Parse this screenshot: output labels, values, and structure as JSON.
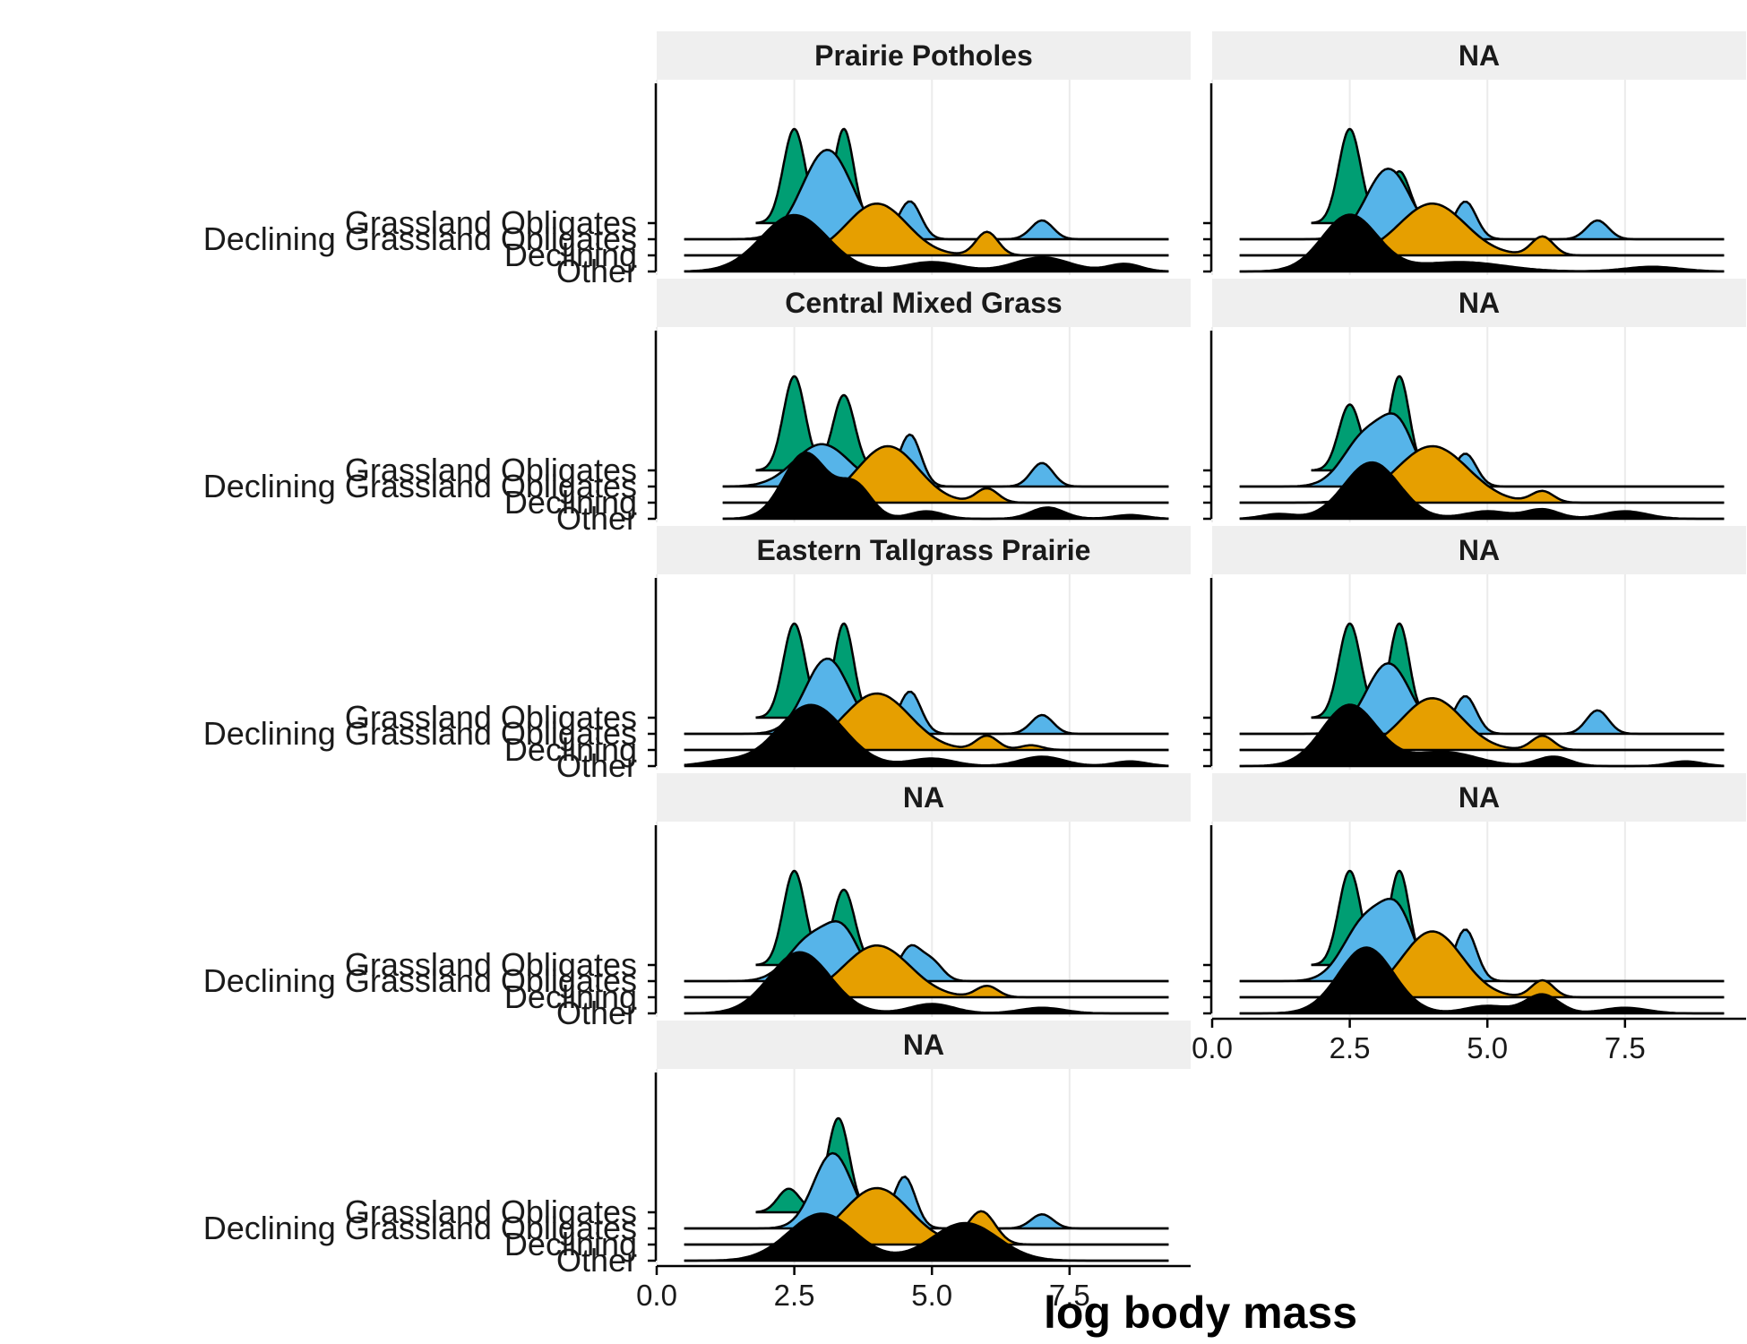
{
  "chart_data": {
    "type": "ridgeline",
    "xlabel": "log body mass",
    "x_ticks": [
      0,
      2.5,
      5,
      7.5
    ],
    "x_tick_labels": [
      "0.0",
      "2.5",
      "5.0",
      "7.5"
    ],
    "xlim": [
      0,
      9.7
    ],
    "categories": [
      "Grassland Obligates",
      "Declining Grassland Obligates",
      "Declining",
      "Other"
    ],
    "colors": {
      "Grassland Obligates": "#009E73",
      "Declining Grassland Obligates": "#56B4E9",
      "Declining": "#E69F00",
      "Other": "#000000"
    },
    "panels": [
      {
        "title": "Prairie Potholes",
        "ridges": [
          {
            "name": "Grassland Obligates",
            "peaks": [
              [
                2.5,
                1.0,
                0.2
              ],
              [
                3.4,
                1.0,
                0.18
              ]
            ],
            "range": [
              1.8,
              4.2
            ]
          },
          {
            "name": "Declining Grassland Obligates",
            "peaks": [
              [
                3.1,
                0.95,
                0.45
              ],
              [
                4.6,
                0.4,
                0.2
              ],
              [
                7.0,
                0.2,
                0.2
              ]
            ],
            "range": [
              0.5,
              9.3
            ]
          },
          {
            "name": "Declining",
            "peaks": [
              [
                4.0,
                0.55,
                0.55
              ],
              [
                6.0,
                0.25,
                0.2
              ]
            ],
            "range": [
              0.5,
              9.3
            ]
          },
          {
            "name": "Other",
            "peaks": [
              [
                2.5,
                0.6,
                0.6
              ],
              [
                5.0,
                0.1,
                0.5
              ],
              [
                7.0,
                0.15,
                0.5
              ],
              [
                8.5,
                0.08,
                0.3
              ]
            ],
            "range": [
              0.5,
              9.3
            ]
          }
        ]
      },
      {
        "title": "NA",
        "ridges": [
          {
            "name": "Grassland Obligates",
            "peaks": [
              [
                2.5,
                1.0,
                0.2
              ],
              [
                3.4,
                0.55,
                0.2
              ]
            ],
            "range": [
              1.8,
              4.2
            ]
          },
          {
            "name": "Declining Grassland Obligates",
            "peaks": [
              [
                3.2,
                0.75,
                0.4
              ],
              [
                4.6,
                0.4,
                0.2
              ],
              [
                7.0,
                0.2,
                0.2
              ]
            ],
            "range": [
              0.5,
              9.3
            ]
          },
          {
            "name": "Declining",
            "peaks": [
              [
                4.0,
                0.55,
                0.6
              ],
              [
                6.0,
                0.2,
                0.2
              ]
            ],
            "range": [
              0.5,
              9.3
            ]
          },
          {
            "name": "Other",
            "peaks": [
              [
                2.5,
                0.6,
                0.5
              ],
              [
                4.5,
                0.1,
                0.8
              ],
              [
                8.0,
                0.05,
                0.5
              ]
            ],
            "range": [
              0.5,
              9.3
            ]
          }
        ]
      },
      {
        "title": "Central Mixed Grass",
        "ridges": [
          {
            "name": "Grassland Obligates",
            "peaks": [
              [
                2.5,
                1.0,
                0.2
              ],
              [
                3.4,
                0.8,
                0.2
              ]
            ],
            "range": [
              1.8,
              4.2
            ]
          },
          {
            "name": "Declining Grassland Obligates",
            "peaks": [
              [
                3.0,
                0.45,
                0.5
              ],
              [
                4.6,
                0.55,
                0.2
              ],
              [
                7.0,
                0.25,
                0.2
              ]
            ],
            "range": [
              1.2,
              9.3
            ]
          },
          {
            "name": "Declining",
            "peaks": [
              [
                4.2,
                0.6,
                0.55
              ],
              [
                6.0,
                0.15,
                0.2
              ]
            ],
            "range": [
              1.2,
              9.3
            ]
          },
          {
            "name": "Other",
            "peaks": [
              [
                2.7,
                0.7,
                0.4
              ],
              [
                3.6,
                0.35,
                0.3
              ],
              [
                4.9,
                0.08,
                0.3
              ],
              [
                7.1,
                0.12,
                0.3
              ],
              [
                8.6,
                0.04,
                0.3
              ]
            ],
            "range": [
              1.2,
              9.3
            ]
          }
        ]
      },
      {
        "title": "NA",
        "ridges": [
          {
            "name": "Grassland Obligates",
            "peaks": [
              [
                2.5,
                0.7,
                0.2
              ],
              [
                3.4,
                1.0,
                0.18
              ]
            ],
            "range": [
              1.8,
              4.2
            ]
          },
          {
            "name": "Declining Grassland Obligates",
            "peaks": [
              [
                2.8,
                0.55,
                0.4
              ],
              [
                3.4,
                0.55,
                0.3
              ],
              [
                4.6,
                0.35,
                0.2
              ]
            ],
            "range": [
              0.5,
              9.3
            ]
          },
          {
            "name": "Declining",
            "peaks": [
              [
                4.0,
                0.6,
                0.65
              ],
              [
                6.0,
                0.12,
                0.2
              ]
            ],
            "range": [
              0.5,
              9.3
            ]
          },
          {
            "name": "Other",
            "peaks": [
              [
                2.9,
                0.6,
                0.5
              ],
              [
                1.2,
                0.05,
                0.3
              ],
              [
                5.0,
                0.08,
                0.4
              ],
              [
                6.0,
                0.1,
                0.3
              ],
              [
                7.5,
                0.08,
                0.4
              ]
            ],
            "range": [
              0.5,
              9.3
            ]
          }
        ]
      },
      {
        "title": "Eastern Tallgrass Prairie",
        "ridges": [
          {
            "name": "Grassland Obligates",
            "peaks": [
              [
                2.5,
                1.0,
                0.2
              ],
              [
                3.4,
                1.0,
                0.18
              ]
            ],
            "range": [
              1.8,
              4.2
            ]
          },
          {
            "name": "Declining Grassland Obligates",
            "peaks": [
              [
                3.1,
                0.8,
                0.4
              ],
              [
                4.6,
                0.45,
                0.2
              ],
              [
                7.0,
                0.2,
                0.2
              ]
            ],
            "range": [
              0.5,
              9.3
            ]
          },
          {
            "name": "Declining",
            "peaks": [
              [
                4.0,
                0.6,
                0.6
              ],
              [
                6.0,
                0.15,
                0.2
              ],
              [
                6.8,
                0.05,
                0.2
              ]
            ],
            "range": [
              0.5,
              9.3
            ]
          },
          {
            "name": "Other",
            "peaks": [
              [
                2.8,
                0.65,
                0.6
              ],
              [
                1.2,
                0.05,
                0.4
              ],
              [
                5.0,
                0.08,
                0.4
              ],
              [
                7.0,
                0.1,
                0.4
              ],
              [
                8.6,
                0.05,
                0.3
              ]
            ],
            "range": [
              0.5,
              9.3
            ]
          }
        ]
      },
      {
        "title": "NA",
        "ridges": [
          {
            "name": "Grassland Obligates",
            "peaks": [
              [
                2.5,
                1.0,
                0.2
              ],
              [
                3.4,
                1.0,
                0.18
              ]
            ],
            "range": [
              1.8,
              4.2
            ]
          },
          {
            "name": "Declining Grassland Obligates",
            "peaks": [
              [
                3.2,
                0.75,
                0.4
              ],
              [
                4.6,
                0.4,
                0.2
              ],
              [
                7.0,
                0.25,
                0.2
              ]
            ],
            "range": [
              0.5,
              9.3
            ]
          },
          {
            "name": "Declining",
            "peaks": [
              [
                4.0,
                0.55,
                0.55
              ],
              [
                6.0,
                0.15,
                0.2
              ]
            ],
            "range": [
              0.5,
              9.3
            ]
          },
          {
            "name": "Other",
            "peaks": [
              [
                2.5,
                0.65,
                0.5
              ],
              [
                4.2,
                0.15,
                0.6
              ],
              [
                6.2,
                0.1,
                0.3
              ],
              [
                8.6,
                0.05,
                0.3
              ]
            ],
            "range": [
              0.5,
              9.3
            ]
          }
        ]
      },
      {
        "title": "NA",
        "ridges": [
          {
            "name": "Grassland Obligates",
            "peaks": [
              [
                2.5,
                1.0,
                0.2
              ],
              [
                3.4,
                0.8,
                0.2
              ]
            ],
            "range": [
              1.8,
              4.2
            ]
          },
          {
            "name": "Declining Grassland Obligates",
            "peaks": [
              [
                2.8,
                0.45,
                0.4
              ],
              [
                3.4,
                0.45,
                0.3
              ],
              [
                4.6,
                0.35,
                0.2
              ],
              [
                5.0,
                0.2,
                0.2
              ]
            ],
            "range": [
              0.5,
              9.3
            ]
          },
          {
            "name": "Declining",
            "peaks": [
              [
                4.0,
                0.55,
                0.6
              ],
              [
                6.0,
                0.12,
                0.2
              ]
            ],
            "range": [
              0.5,
              9.3
            ]
          },
          {
            "name": "Other",
            "peaks": [
              [
                2.6,
                0.65,
                0.55
              ],
              [
                5.0,
                0.1,
                0.4
              ],
              [
                7.0,
                0.06,
                0.4
              ]
            ],
            "range": [
              0.5,
              9.3
            ]
          }
        ]
      },
      {
        "title": "NA",
        "ridges": [
          {
            "name": "Grassland Obligates",
            "peaks": [
              [
                2.5,
                1.0,
                0.2
              ],
              [
                3.4,
                1.0,
                0.18
              ]
            ],
            "range": [
              1.8,
              4.2
            ]
          },
          {
            "name": "Declining Grassland Obligates",
            "peaks": [
              [
                2.8,
                0.65,
                0.4
              ],
              [
                3.4,
                0.6,
                0.3
              ],
              [
                4.6,
                0.55,
                0.2
              ]
            ],
            "range": [
              0.5,
              9.3
            ]
          },
          {
            "name": "Declining",
            "peaks": [
              [
                4.0,
                0.7,
                0.55
              ],
              [
                6.0,
                0.18,
                0.2
              ]
            ],
            "range": [
              0.5,
              9.3
            ]
          },
          {
            "name": "Other",
            "peaks": [
              [
                2.8,
                0.7,
                0.5
              ],
              [
                5.0,
                0.08,
                0.4
              ],
              [
                6.0,
                0.2,
                0.3
              ],
              [
                7.5,
                0.06,
                0.4
              ]
            ],
            "range": [
              0.5,
              9.3
            ]
          }
        ]
      },
      {
        "title": "NA",
        "ridges": [
          {
            "name": "Grassland Obligates",
            "peaks": [
              [
                2.4,
                0.25,
                0.2
              ],
              [
                3.3,
                1.0,
                0.2
              ]
            ],
            "range": [
              1.8,
              4.2
            ]
          },
          {
            "name": "Declining Grassland Obligates",
            "peaks": [
              [
                3.2,
                0.8,
                0.35
              ],
              [
                4.5,
                0.55,
                0.2
              ],
              [
                7.0,
                0.15,
                0.2
              ]
            ],
            "range": [
              0.5,
              9.3
            ]
          },
          {
            "name": "Declining",
            "peaks": [
              [
                4.0,
                0.6,
                0.6
              ],
              [
                5.9,
                0.35,
                0.25
              ]
            ],
            "range": [
              0.5,
              9.3
            ]
          },
          {
            "name": "Other",
            "peaks": [
              [
                3.0,
                0.5,
                0.6
              ],
              [
                5.6,
                0.4,
                0.6
              ]
            ],
            "range": [
              0.5,
              9.3
            ]
          }
        ]
      }
    ]
  }
}
